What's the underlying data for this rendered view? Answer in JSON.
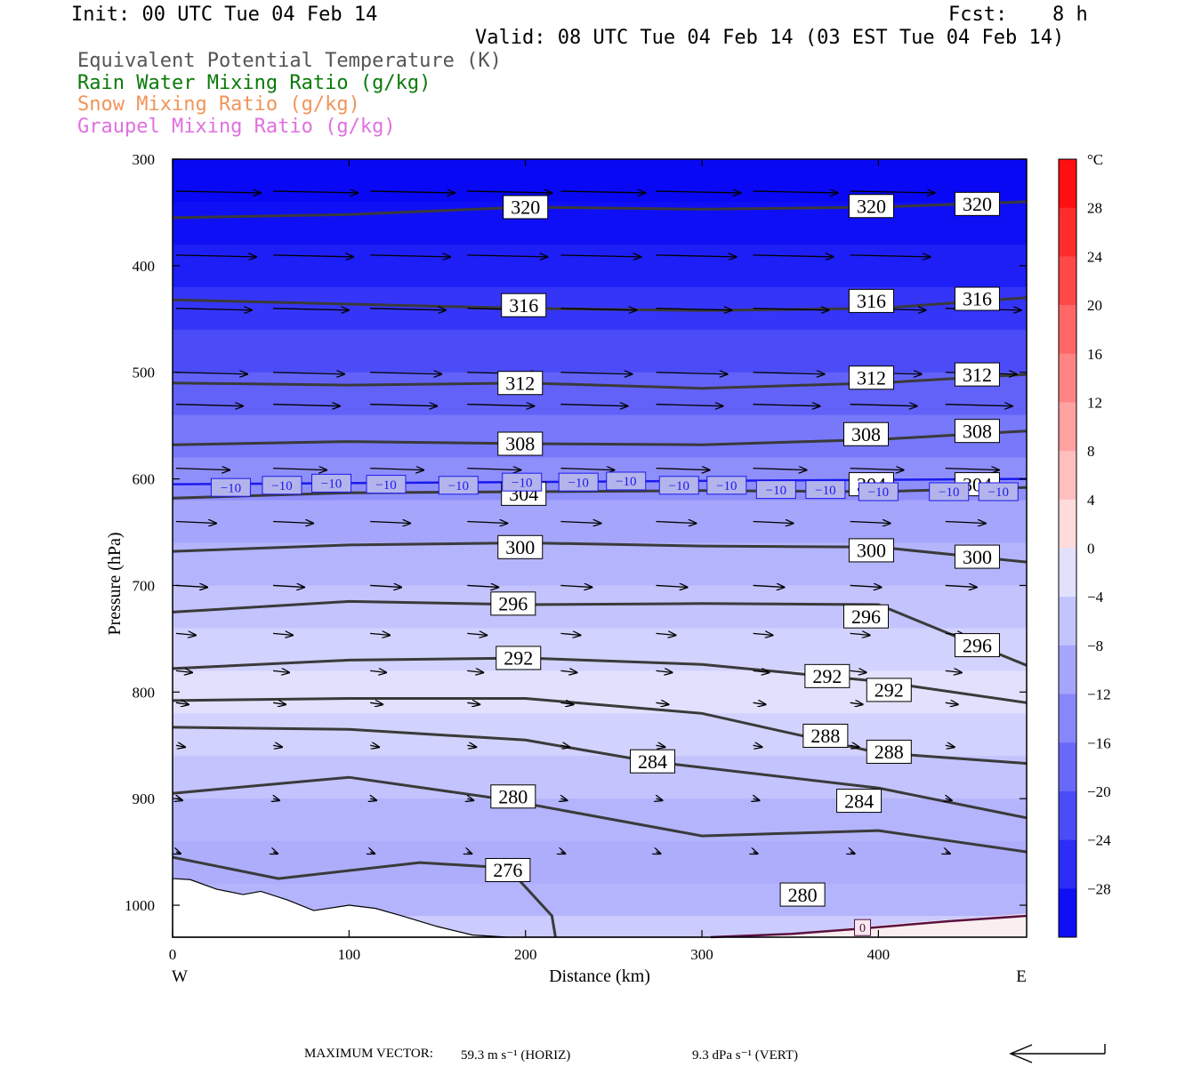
{
  "header": {
    "init": "Init: 00 UTC Tue 04 Feb 14",
    "fcst_label": "Fcst:",
    "fcst_value": "8 h",
    "valid": "Valid: 08 UTC Tue 04 Feb 14 (03 EST Tue 04 Feb 14)"
  },
  "fields": [
    {
      "label": "Equivalent Potential Temperature (K)",
      "color": "#555555"
    },
    {
      "label": "Rain Water Mixing Ratio (g/kg)",
      "color": "#0a7a0a"
    },
    {
      "label": "Snow Mixing Ratio (g/kg)",
      "color": "#f0955a"
    },
    {
      "label": "Graupel Mixing Ratio (g/kg)",
      "color": "#e070e0"
    }
  ],
  "footer": {
    "max_vector_label": "MAXIMUM VECTOR:",
    "horiz": "59.3 m s⁻¹ (HORIZ)",
    "vert": "9.3 dPa s⁻¹ (VERT)"
  },
  "chart_data": {
    "type": "heatmap",
    "xlabel": "Distance (km)",
    "ylabel": "Pressure (hPa)",
    "xlim": [
      0,
      484
    ],
    "ylim": [
      1030,
      300
    ],
    "x_ticks": [
      0,
      100,
      200,
      300,
      400
    ],
    "y_ticks": [
      300,
      400,
      500,
      600,
      700,
      800,
      900,
      1000
    ],
    "x_end_labels": {
      "left": "W",
      "right": "E"
    },
    "colorbar": {
      "unit": "°C",
      "tick_labels": [
        "28",
        "24",
        "20",
        "16",
        "12",
        "8",
        "4",
        "0",
        "−4",
        "−8",
        "−12",
        "−16",
        "−20",
        "−24",
        "−28"
      ],
      "range": [
        -32,
        32
      ],
      "step": 4
    },
    "theta_e_contours": [
      {
        "level": 320,
        "points": [
          [
            0,
            355
          ],
          [
            100,
            352
          ],
          [
            200,
            345
          ],
          [
            300,
            347
          ],
          [
            400,
            345
          ],
          [
            484,
            340
          ]
        ],
        "labels": [
          [
            200,
            345
          ],
          [
            396,
            344
          ],
          [
            456,
            342
          ]
        ]
      },
      {
        "level": 316,
        "points": [
          [
            0,
            432
          ],
          [
            100,
            436
          ],
          [
            200,
            440
          ],
          [
            300,
            442
          ],
          [
            400,
            440
          ],
          [
            484,
            430
          ]
        ],
        "labels": [
          [
            199,
            437
          ],
          [
            396,
            433
          ],
          [
            456,
            431
          ]
        ]
      },
      {
        "level": 312,
        "points": [
          [
            0,
            510
          ],
          [
            100,
            512
          ],
          [
            200,
            510
          ],
          [
            300,
            515
          ],
          [
            400,
            510
          ],
          [
            484,
            502
          ]
        ],
        "labels": [
          [
            197,
            510
          ],
          [
            396,
            505
          ],
          [
            456,
            502
          ]
        ]
      },
      {
        "level": 308,
        "points": [
          [
            0,
            568
          ],
          [
            100,
            565
          ],
          [
            200,
            567
          ],
          [
            300,
            568
          ],
          [
            400,
            563
          ],
          [
            484,
            555
          ]
        ],
        "labels": [
          [
            197,
            567
          ],
          [
            393,
            558
          ],
          [
            456,
            555
          ]
        ]
      },
      {
        "level": 304,
        "points": [
          [
            0,
            618
          ],
          [
            100,
            613
          ],
          [
            200,
            612
          ],
          [
            300,
            611
          ],
          [
            400,
            612
          ],
          [
            484,
            608
          ]
        ],
        "labels": [
          [
            199,
            614
          ],
          [
            396,
            605
          ],
          [
            456,
            605
          ]
        ]
      },
      {
        "level": 300,
        "points": [
          [
            0,
            668
          ],
          [
            100,
            662
          ],
          [
            200,
            660
          ],
          [
            300,
            663
          ],
          [
            400,
            664
          ],
          [
            484,
            678
          ]
        ],
        "labels": [
          [
            197,
            664
          ],
          [
            396,
            667
          ],
          [
            456,
            673
          ]
        ]
      },
      {
        "level": 296,
        "points": [
          [
            0,
            725
          ],
          [
            100,
            715
          ],
          [
            200,
            718
          ],
          [
            300,
            717
          ],
          [
            400,
            718
          ],
          [
            484,
            775
          ]
        ],
        "labels": [
          [
            193,
            717
          ],
          [
            393,
            729
          ],
          [
            456,
            756
          ]
        ]
      },
      {
        "level": 292,
        "points": [
          [
            0,
            778
          ],
          [
            100,
            770
          ],
          [
            200,
            768
          ],
          [
            300,
            774
          ],
          [
            400,
            790
          ],
          [
            484,
            810
          ]
        ],
        "labels": [
          [
            196,
            768
          ],
          [
            371,
            785
          ],
          [
            406,
            798
          ]
        ]
      },
      {
        "level": 288,
        "points": [
          [
            0,
            808
          ],
          [
            100,
            806
          ],
          [
            200,
            806
          ],
          [
            300,
            820
          ],
          [
            400,
            857
          ],
          [
            484,
            867
          ]
        ],
        "labels": [
          [
            370,
            841
          ],
          [
            406,
            856
          ]
        ]
      },
      {
        "level": 284,
        "points": [
          [
            0,
            833
          ],
          [
            100,
            835
          ],
          [
            200,
            845
          ],
          [
            270,
            865
          ],
          [
            400,
            890
          ],
          [
            484,
            918
          ]
        ],
        "labels": [
          [
            272,
            865
          ],
          [
            389,
            902
          ]
        ]
      },
      {
        "level": 280,
        "points": [
          [
            0,
            895
          ],
          [
            100,
            880
          ],
          [
            185,
            900
          ],
          [
            300,
            935
          ],
          [
            400,
            930
          ],
          [
            484,
            950
          ]
        ],
        "labels": [
          [
            193,
            898
          ],
          [
            357,
            990
          ]
        ]
      },
      {
        "level": 276,
        "points": [
          [
            0,
            955
          ],
          [
            60,
            975
          ],
          [
            140,
            960
          ],
          [
            190,
            965
          ],
          [
            215,
            1010
          ],
          [
            217,
            1030
          ]
        ],
        "labels": [
          [
            190,
            967
          ]
        ]
      }
    ],
    "isotherm_minus10": {
      "level": -10,
      "points": [
        [
          0,
          605
        ],
        [
          484,
          600
        ]
      ],
      "labels": [
        [
          33,
          608
        ],
        [
          62,
          606
        ],
        [
          90,
          604
        ],
        [
          121,
          605
        ],
        [
          162,
          606
        ],
        [
          198,
          603
        ],
        [
          230,
          603
        ],
        [
          257,
          602
        ],
        [
          287,
          606
        ],
        [
          314,
          606
        ],
        [
          342,
          610
        ],
        [
          370,
          610
        ],
        [
          400,
          612
        ],
        [
          440,
          612
        ],
        [
          468,
          612
        ]
      ]
    },
    "isotherm_zero": {
      "level": 0,
      "points": [
        [
          305,
          1030
        ],
        [
          350,
          1027
        ],
        [
          390,
          1022
        ],
        [
          440,
          1015
        ],
        [
          484,
          1010
        ]
      ],
      "labels": [
        [
          391,
          1021
        ]
      ]
    }
  }
}
